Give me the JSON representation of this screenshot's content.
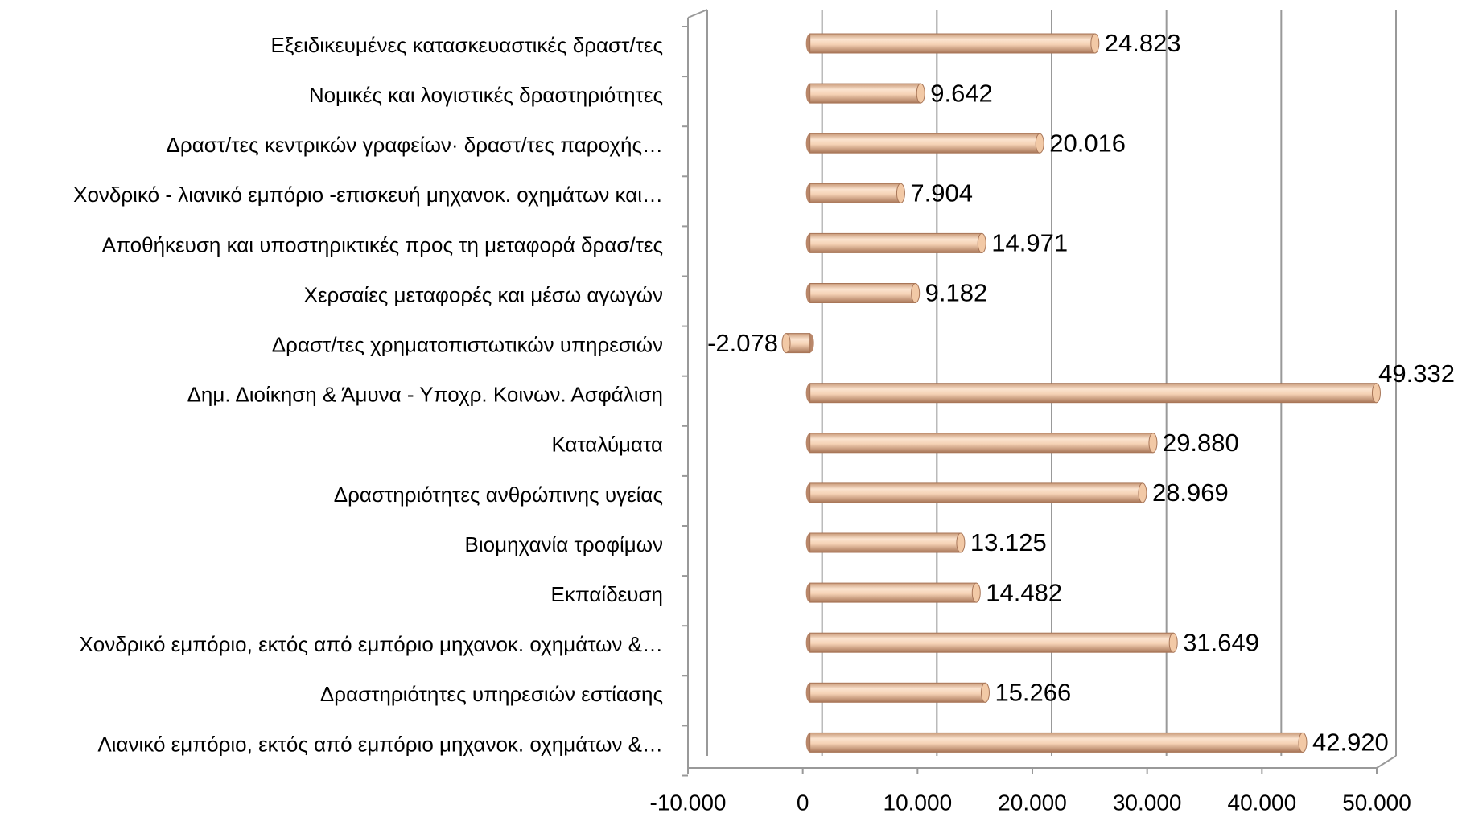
{
  "chart_data": {
    "type": "bar",
    "orientation": "horizontal",
    "categories": [
      "Εξειδικευμένες κατασκευαστικές δραστ/τες",
      "Νομικές και λογιστικές δραστηριότητες",
      "Δραστ/τες κεντρικών γραφείων· δραστ/τες παροχής…",
      "Χονδρικό - λιανικό εμπόριο -επισκευή μηχανοκ. οχημάτων και…",
      "Αποθήκευση και υποστηρικτικές προς τη μεταφορά δρασ/τες",
      "Χερσαίες μεταφορές και μέσω αγωγών",
      "Δραστ/τες χρηματοπιστωτικών υπηρεσιών",
      "Δημ. Διοίκηση & Άμυνα - Υποχρ. Κοινων. Ασφάλιση",
      "Καταλύματα",
      "Δραστηριότητες ανθρώπινης υγείας",
      "Βιομηχανία τροφίμων",
      "Εκπαίδευση",
      "Χονδρικό εμπόριο, εκτός από εμπόριο μηχανοκ. οχημάτων &…",
      "Δραστηριότητες υπηρεσιών εστίασης",
      "Λιανικό εμπόριο, εκτός από εμπόριο μηχανοκ. οχημάτων &…"
    ],
    "values": [
      24823,
      9642,
      20016,
      7904,
      14971,
      9182,
      -2078,
      49332,
      29880,
      28969,
      13125,
      14482,
      31649,
      15266,
      42920
    ],
    "value_labels": [
      "24.823",
      "9.642",
      "20.016",
      "7.904",
      "14.971",
      "9.182",
      "-2.078",
      "49.332",
      "29.880",
      "28.969",
      "13.125",
      "14.482",
      "31.649",
      "15.266",
      "42.920"
    ],
    "color": "#f2c9a6",
    "xlim": [
      -10000,
      50000
    ],
    "xticks": [
      {
        "value": -10000,
        "label": "-10.000"
      },
      0,
      {
        "value": 10000,
        "label": "10.000"
      },
      {
        "value": 20000,
        "label": "20.000"
      },
      {
        "value": 30000,
        "label": "30.000"
      },
      {
        "value": 40000,
        "label": "40.000"
      },
      {
        "value": 50000,
        "label": "50.000"
      }
    ],
    "grid": true
  }
}
